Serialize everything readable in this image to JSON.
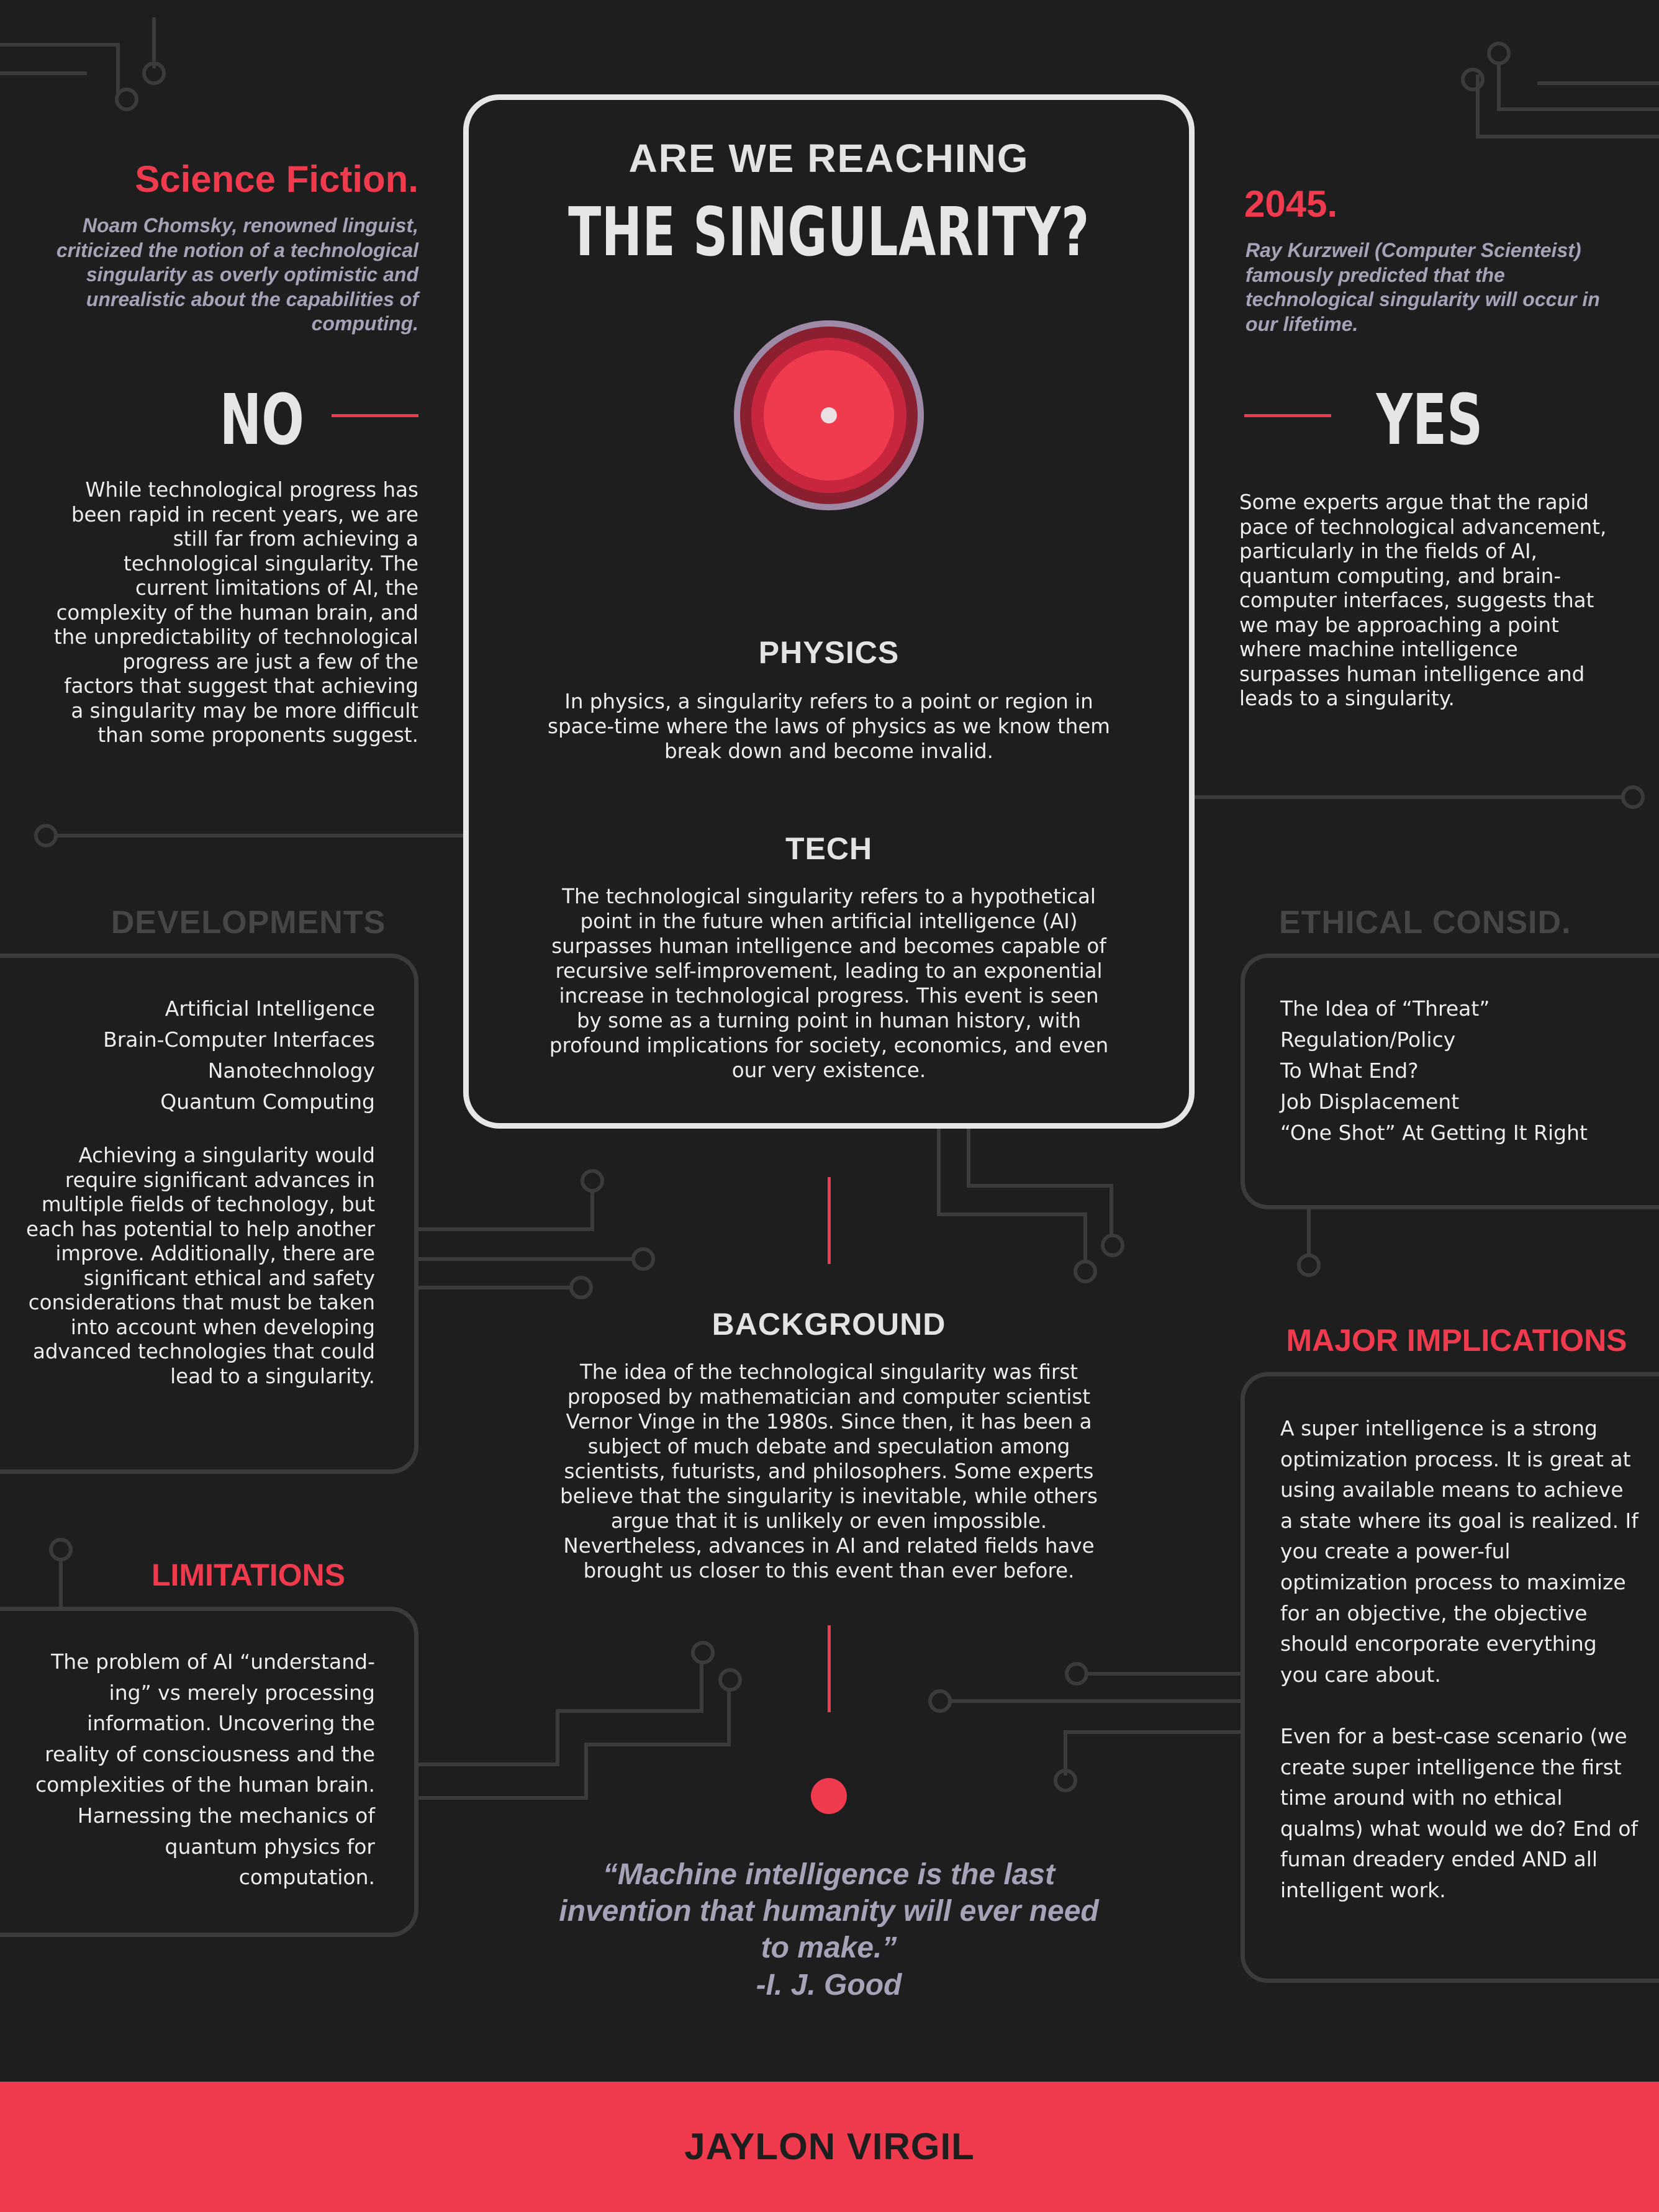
{
  "header": {
    "kicker": "ARE WE REACHING",
    "title": "THE SINGULARITY?"
  },
  "left_top": {
    "heading": "Science Fiction.",
    "quote": "Noam Chomsky, renowned linguist, criticized the notion of a technological singularity as overly optimistic and unrealistic about the capabilities of computing.",
    "verdict": "NO",
    "body": "While technological progress has been rapid in recent years, we are still far from achieving a technological singularity. The current limitations of AI, the complexity of the human brain, and the unpredictability of technological progress are just a few of the factors that suggest that achieving a singularity may be more difficult than some proponents suggest."
  },
  "right_top": {
    "heading": "2045.",
    "quote": "Ray Kurzweil (Computer Scienteist) famously predicted that the technological singularity will occur in our lifetime.",
    "verdict": "YES",
    "body": "Some experts argue that the rapid pace of technological advancement, particularly in the fields of AI, quantum computing, and brain-computer interfaces, suggests that we may be approaching a point where machine intelligence surpasses human intelligence and leads to a singularity."
  },
  "physics": {
    "heading": "PHYSICS",
    "body": "In physics, a singularity refers to a point or region in space-time where the laws of physics as we know them break down and become invalid."
  },
  "tech": {
    "heading": "TECH",
    "body": "The technological singularity refers to a hypothetical point in the future when artificial intelligence (AI) surpasses human intelligence and becomes capable of recursive self-improvement, leading to an exponential increase in technological progress. This event is seen by some as a turning point in human history, with profound implications for society, economics, and even our very existence."
  },
  "developments": {
    "heading": "DEVELOPMENTS",
    "items": [
      "Artificial Intelligence",
      "Brain-Computer Interfaces",
      "Nanotechnology",
      "Quantum Computing"
    ],
    "body": "Achieving a singularity would require significant advances in multiple fields of technology, but each has potential to help another improve. Additionally, there are significant ethical and safety considerations that must be taken into account when developing advanced technologies that could lead to a singularity."
  },
  "ethical": {
    "heading": "ETHICAL CONSID.",
    "items": [
      "The Idea of “Threat”",
      "Regulation/Policy",
      "To What End?",
      "Job Displacement",
      "“One Shot” At Getting It Right"
    ]
  },
  "background": {
    "heading": "BACKGROUND",
    "body": "The idea of the technological singularity was first proposed by mathematician and computer scientist Vernor Vinge in the 1980s. Since then, it has been a subject of much debate and speculation among scientists, futurists, and philosophers. Some experts believe that the singularity is inevitable, while others argue that it is unlikely or even impossible. Nevertheless, advances in AI and related fields have brought us closer to this event than ever before."
  },
  "limitations": {
    "heading": "LIMITATIONS",
    "body": "The problem of AI “understand-ing” vs merely processing information. Uncovering the reality of consciousness and the complexities of the human brain. Harnessing the mechanics of quantum physics for computation."
  },
  "implications": {
    "heading": "MAJOR IMPLICATIONS",
    "body1": "A super intelligence is a strong optimization process. It is great at using available means to achieve a state where its goal is realized. If you create a power-ful optimization process to maximize for an objective, the objective should encorporate everything you care about.",
    "body2": "Even for a best-case scenario (we create super intelligence the first time around with no ethical qualms) what would we do? End of fuman dreadery ended AND all intelligent work."
  },
  "quote": {
    "text": "“Machine intelligence is the last invention that humanity will ever need to make.”",
    "author": "-I. J. Good"
  },
  "footer": {
    "name": "JAYLON VIRGIL"
  },
  "colors": {
    "accent": "#f03a4e",
    "background": "#1e1e1f",
    "circuit": "#3b3b3d",
    "quote": "#a7a2b8"
  }
}
